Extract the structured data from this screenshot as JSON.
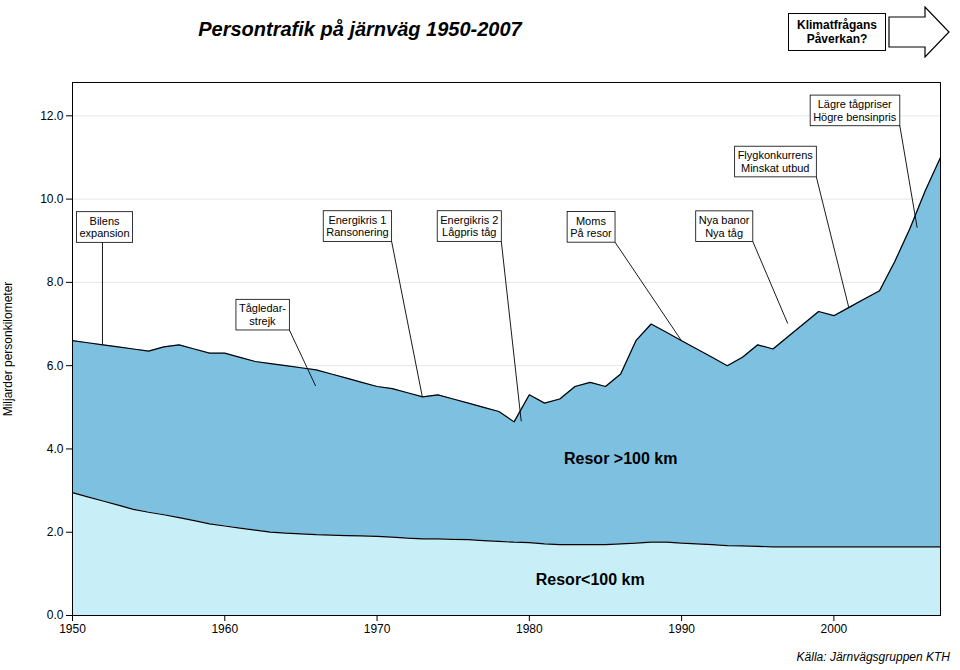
{
  "chart_data": {
    "type": "area",
    "title": "Persontrafik på järnväg 1950-2007",
    "ylabel": "Miljarder personkilometer",
    "caption": "Källa: Järnvägsgruppen KTH",
    "x": [
      1950,
      1951,
      1952,
      1953,
      1954,
      1955,
      1956,
      1957,
      1958,
      1959,
      1960,
      1961,
      1962,
      1963,
      1964,
      1965,
      1966,
      1967,
      1968,
      1969,
      1970,
      1971,
      1972,
      1973,
      1974,
      1975,
      1976,
      1977,
      1978,
      1979,
      1980,
      1981,
      1982,
      1983,
      1984,
      1985,
      1986,
      1987,
      1988,
      1989,
      1990,
      1991,
      1992,
      1993,
      1994,
      1995,
      1996,
      1997,
      1998,
      1999,
      2000,
      2001,
      2002,
      2003,
      2004,
      2005,
      2006,
      2007
    ],
    "series": [
      {
        "name": "Resor >100 km",
        "color": "#7DC0E0",
        "values": [
          6.6,
          6.55,
          6.5,
          6.45,
          6.4,
          6.35,
          6.45,
          6.5,
          6.4,
          6.3,
          6.3,
          6.2,
          6.1,
          6.05,
          6.0,
          5.95,
          5.9,
          5.8,
          5.7,
          5.6,
          5.5,
          5.45,
          5.35,
          5.25,
          5.3,
          5.2,
          5.1,
          5.0,
          4.9,
          4.65,
          5.3,
          5.1,
          5.2,
          5.5,
          5.6,
          5.5,
          5.8,
          6.6,
          7.0,
          6.8,
          6.6,
          6.4,
          6.2,
          6.0,
          6.2,
          6.5,
          6.4,
          6.7,
          7.0,
          7.3,
          7.2,
          7.4,
          7.6,
          7.8,
          8.5,
          9.3,
          10.2,
          11.0
        ]
      },
      {
        "name": "Resor<100 km",
        "color": "#C8EEF8",
        "values": [
          2.95,
          2.85,
          2.75,
          2.65,
          2.55,
          2.48,
          2.42,
          2.35,
          2.28,
          2.2,
          2.15,
          2.1,
          2.05,
          2.0,
          1.98,
          1.96,
          1.94,
          1.93,
          1.92,
          1.91,
          1.9,
          1.88,
          1.86,
          1.84,
          1.84,
          1.83,
          1.82,
          1.8,
          1.78,
          1.76,
          1.75,
          1.72,
          1.7,
          1.7,
          1.7,
          1.7,
          1.72,
          1.74,
          1.76,
          1.76,
          1.74,
          1.72,
          1.7,
          1.68,
          1.67,
          1.66,
          1.65,
          1.65,
          1.65,
          1.65,
          1.65,
          1.65,
          1.65,
          1.65,
          1.65,
          1.65,
          1.65,
          1.65
        ]
      }
    ],
    "xlim": [
      1950,
      2007
    ],
    "ylim": [
      0.0,
      12.8
    ],
    "xticks": [
      1950,
      1960,
      1970,
      1980,
      1990,
      2000
    ],
    "yticks": [
      {
        "value": 0.0,
        "label": "0.0"
      },
      {
        "value": 2.0,
        "label": "2.0"
      },
      {
        "value": 4.0,
        "label": "4.0"
      },
      {
        "value": 6.0,
        "label": "6.0"
      },
      {
        "value": 8.0,
        "label": "8.0"
      },
      {
        "value": 10.0,
        "label": "10.0"
      },
      {
        "value": 12.0,
        "label": "12.0"
      }
    ],
    "grid": true,
    "annotations": [
      {
        "text": "Bilens\nexpansion",
        "x": 1952,
        "y": 6.5
      },
      {
        "text": "Tågledar-\nstrejk",
        "x": 1966,
        "y": 5.5
      },
      {
        "text": "Energikris 1\nRansonering",
        "x": 1973,
        "y": 5.25
      },
      {
        "text": "Energikris 2\nLågpris tåg",
        "x": 1979.5,
        "y": 4.65
      },
      {
        "text": "Moms\nPå resor",
        "x": 1990,
        "y": 6.6
      },
      {
        "text": "Nya banor\nNya tåg",
        "x": 1997,
        "y": 7.0
      },
      {
        "text": "Flygkonkurrens\nMinskat utbud",
        "x": 2001,
        "y": 7.4
      },
      {
        "text": "Lägre tågpriser\nHögre bensinpris",
        "x": 2005.5,
        "y": 9.3
      },
      {
        "text": "Klimatfrågans\nPåverkan?"
      }
    ]
  }
}
